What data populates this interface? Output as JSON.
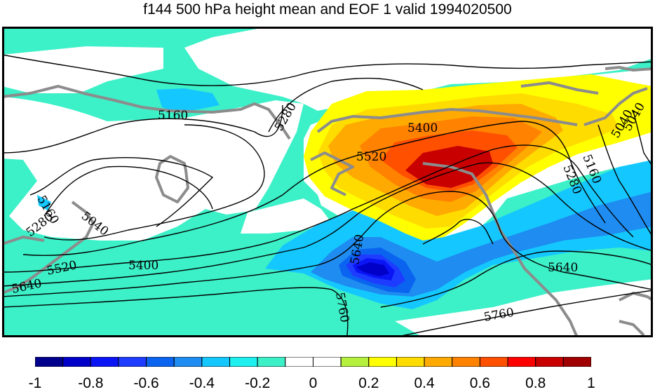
{
  "title": "f144 500 hPa height mean and EOF 1 valid 1994020500",
  "colorbar": {
    "ticks": [
      "-1",
      "-0.8",
      "-0.6",
      "-0.4",
      "-0.2",
      "0",
      "0.2",
      "0.4",
      "0.6",
      "0.8",
      "1"
    ],
    "colors": [
      "#00008c",
      "#0000c8",
      "#0a14f5",
      "#1e3cff",
      "#0a64f0",
      "#1e8cf0",
      "#14c8ff",
      "#1ef0f0",
      "#3cf0c8",
      "#ffffff",
      "#ffffff",
      "#b4f03c",
      "#ffff00",
      "#ffdc00",
      "#ffaa00",
      "#ff8200",
      "#ff5000",
      "#ff0000",
      "#c80000",
      "#a00000"
    ]
  },
  "contour_labels": [
    "5160",
    "5280",
    "5400",
    "5520",
    "5040",
    "5160",
    "5280",
    "5040",
    "5400",
    "5520",
    "5640",
    "5640",
    "5760",
    "5640",
    "5760",
    "5280",
    "5160",
    "5040"
  ],
  "colors": {
    "coast": "#8c8c8c",
    "contour": "#000000",
    "frame": "#000000"
  }
}
